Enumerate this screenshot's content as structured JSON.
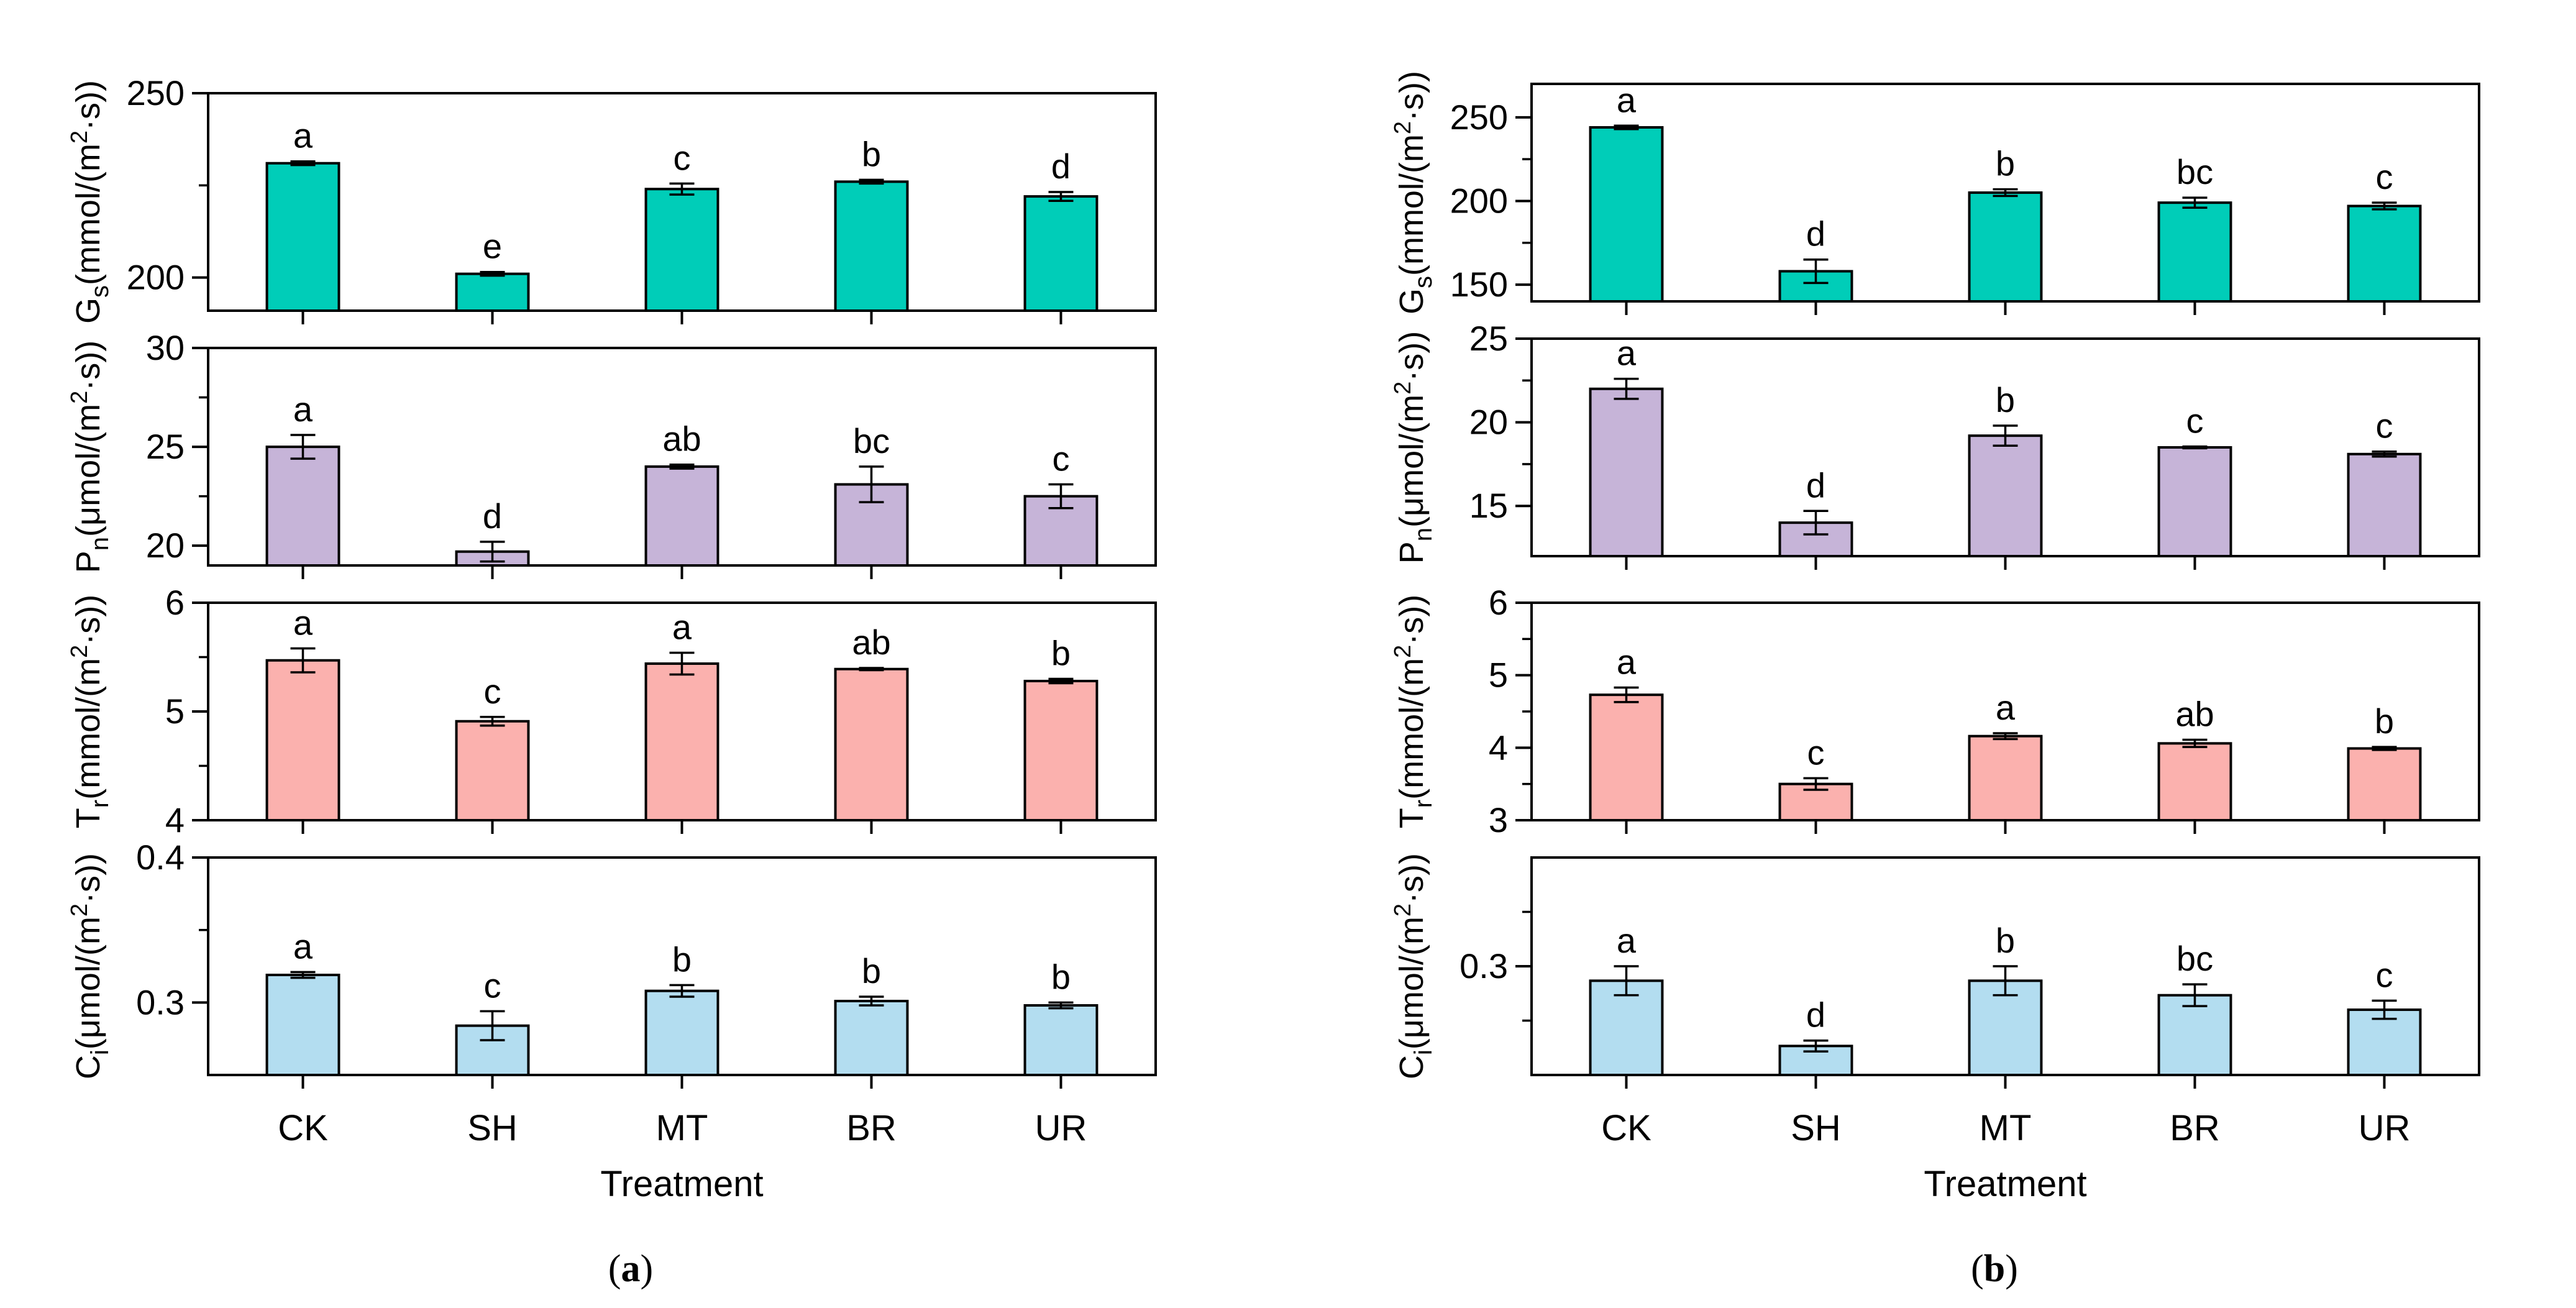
{
  "chart_data": [
    {
      "panel": "a",
      "type": "bar",
      "xlabel": "Treatment",
      "categories": [
        "CK",
        "SH",
        "MT",
        "BR",
        "UR"
      ],
      "subplots": [
        {
          "id": "gs",
          "ylabel": "Gs(mmol/(m²·s))",
          "ylabel_main": "G",
          "ylabel_sub": "s",
          "ylabel_rest": "(mmol/(m",
          "ylabel_sup": "2",
          "ylabel_end": "·s))",
          "ylim": [
            191,
            250
          ],
          "yticks": [
            200,
            250
          ],
          "minor_ticks": [
            225
          ],
          "values": [
            231,
            201,
            224,
            226,
            222
          ],
          "errors": [
            0.5,
            0.5,
            1.5,
            0.5,
            1.2
          ],
          "letters": [
            "a",
            "e",
            "c",
            "b",
            "d"
          ],
          "color": "#00CDB8"
        },
        {
          "id": "pn",
          "ylabel": "Pn(μmol/(m²·s))",
          "ylabel_main": "P",
          "ylabel_sub": "n",
          "ylabel_rest": "(μmol/(m",
          "ylabel_sup": "2",
          "ylabel_end": "·s))",
          "ylim": [
            19,
            30
          ],
          "yticks": [
            20,
            25,
            30
          ],
          "minor_ticks": [
            22.5,
            27.5
          ],
          "values": [
            25,
            19.7,
            24,
            23.1,
            22.5
          ],
          "errors": [
            0.6,
            0.5,
            0.1,
            0.9,
            0.6
          ],
          "letters": [
            "a",
            "d",
            "ab",
            "bc",
            "c"
          ],
          "color": "#C6B4D8"
        },
        {
          "id": "tr",
          "ylabel": "Tr(mmol/(m²·s))",
          "ylabel_main": "T",
          "ylabel_sub": "r",
          "ylabel_rest": "(mmol/(m",
          "ylabel_sup": "2",
          "ylabel_end": "·s))",
          "ylim": [
            4,
            6
          ],
          "yticks": [
            4,
            5,
            6
          ],
          "minor_ticks": [
            4.5,
            5.5
          ],
          "values": [
            5.47,
            4.91,
            5.44,
            5.39,
            5.28
          ],
          "errors": [
            0.11,
            0.04,
            0.1,
            0.01,
            0.02
          ],
          "letters": [
            "a",
            "c",
            "a",
            "ab",
            "b"
          ],
          "color": "#FBB1AE"
        },
        {
          "id": "ci",
          "ylabel": "Ci(μmol/(m²·s))",
          "ylabel_main": "C",
          "ylabel_sub": "i",
          "ylabel_rest": "(μmol/(m",
          "ylabel_sup": "2",
          "ylabel_end": "·s))",
          "ylim": [
            0.25,
            0.4
          ],
          "yticks": [
            0.3,
            0.4
          ],
          "minor_ticks": [
            0.35
          ],
          "values": [
            0.319,
            0.284,
            0.308,
            0.301,
            0.298
          ],
          "errors": [
            0.002,
            0.01,
            0.004,
            0.003,
            0.002
          ],
          "letters": [
            "a",
            "c",
            "b",
            "b",
            "b"
          ],
          "color": "#B3DDF0"
        }
      ]
    },
    {
      "panel": "b",
      "type": "bar",
      "xlabel": "Treatment",
      "categories": [
        "CK",
        "SH",
        "MT",
        "BR",
        "UR"
      ],
      "subplots": [
        {
          "id": "gs",
          "ylabel": "Gs(mmol/(m²·s))",
          "ylabel_main": "G",
          "ylabel_sub": "s",
          "ylabel_rest": "(mmol/(m",
          "ylabel_sup": "2",
          "ylabel_end": "·s))",
          "ylim": [
            140,
            270
          ],
          "yticks": [
            150,
            200,
            250
          ],
          "minor_ticks": [
            175,
            225
          ],
          "values": [
            244,
            158,
            205,
            199,
            197
          ],
          "errors": [
            1,
            7,
            2,
            3,
            2
          ],
          "letters": [
            "a",
            "d",
            "b",
            "bc",
            "c"
          ],
          "color": "#00CDB8"
        },
        {
          "id": "pn",
          "ylabel": "Pn(μmol/(m²·s))",
          "ylabel_main": "P",
          "ylabel_sub": "n",
          "ylabel_rest": "(μmol/(m",
          "ylabel_sup": "2",
          "ylabel_end": "·s))",
          "ylim": [
            12,
            25
          ],
          "yticks": [
            15,
            20,
            25
          ],
          "minor_ticks": [
            17.5,
            22.5
          ],
          "values": [
            22,
            14,
            19.2,
            18.5,
            18.1
          ],
          "errors": [
            0.6,
            0.7,
            0.6,
            0.05,
            0.15
          ],
          "letters": [
            "a",
            "d",
            "b",
            "c",
            "c"
          ],
          "color": "#C6B4D8"
        },
        {
          "id": "tr",
          "ylabel": "Tr(mmol/(m²·s))",
          "ylabel_main": "T",
          "ylabel_sub": "r",
          "ylabel_rest": "(mmol/(m",
          "ylabel_sup": "2",
          "ylabel_end": "·s))",
          "ylim": [
            3,
            6
          ],
          "yticks": [
            3,
            4,
            5,
            6
          ],
          "minor_ticks": [
            3.5,
            4.5,
            5.5
          ],
          "values": [
            4.73,
            3.5,
            4.16,
            4.06,
            3.99
          ],
          "errors": [
            0.1,
            0.08,
            0.04,
            0.05,
            0.02
          ],
          "letters": [
            "a",
            "c",
            "a",
            "ab",
            "b"
          ],
          "color": "#FBB1AE"
        },
        {
          "id": "ci",
          "ylabel": "Ci(μmol/(m²·s))",
          "ylabel_main": "C",
          "ylabel_sub": "i",
          "ylabel_rest": "(μmol/(m",
          "ylabel_sup": "2",
          "ylabel_end": "·s))",
          "ylim": [
            0.24,
            0.36
          ],
          "yticks": [
            0.3
          ],
          "minor_ticks": [
            0.27,
            0.33
          ],
          "values": [
            0.292,
            0.256,
            0.292,
            0.284,
            0.276
          ],
          "errors": [
            0.008,
            0.003,
            0.008,
            0.006,
            0.005
          ],
          "letters": [
            "a",
            "d",
            "b",
            "bc",
            "c"
          ],
          "color": "#B3DDF0"
        }
      ]
    }
  ],
  "panel_labels": {
    "a": "a",
    "b": "b"
  }
}
